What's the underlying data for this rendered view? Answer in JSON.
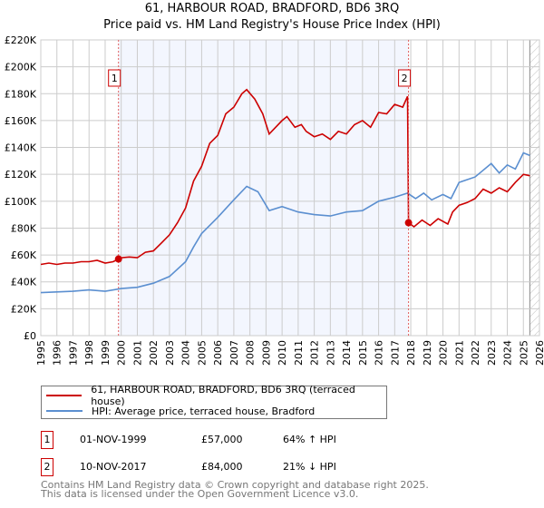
{
  "chart_data": {
    "type": "line",
    "title": "61, HARBOUR ROAD, BRADFORD, BD6 3RQ",
    "subtitle": "Price paid vs. HM Land Registry's House Price Index (HPI)",
    "xlim": [
      1995,
      2026
    ],
    "ylim": [
      0,
      220000
    ],
    "x_ticks": [
      "1995",
      "1996",
      "1997",
      "1998",
      "1999",
      "2000",
      "2001",
      "2002",
      "2003",
      "2004",
      "2005",
      "2006",
      "2007",
      "2008",
      "2009",
      "2010",
      "2011",
      "2012",
      "2013",
      "2014",
      "2015",
      "2016",
      "2017",
      "2018",
      "2019",
      "2020",
      "2021",
      "2022",
      "2023",
      "2024",
      "2025",
      "2026"
    ],
    "y_ticks": [
      "£0",
      "£20K",
      "£40K",
      "£60K",
      "£80K",
      "£100K",
      "£120K",
      "£140K",
      "£160K",
      "£180K",
      "£200K",
      "£220K"
    ],
    "grid": true,
    "series": [
      {
        "name": "61, HARBOUR ROAD, BRADFORD, BD6 3RQ (terraced house)",
        "color": "#cc0000",
        "x": [
          1995,
          1995.5,
          1996,
          1996.5,
          1997,
          1997.5,
          1998,
          1998.5,
          1999,
          1999.5,
          1999.83,
          2000,
          2000.5,
          2001,
          2001.5,
          2002,
          2002.5,
          2003,
          2003.5,
          2004,
          2004.5,
          2005,
          2005.5,
          2006,
          2006.5,
          2007,
          2007.5,
          2007.8,
          2008.3,
          2008.8,
          2009.2,
          2009.6,
          2010,
          2010.3,
          2010.8,
          2011.2,
          2011.5,
          2012,
          2012.5,
          2013,
          2013.5,
          2014,
          2014.5,
          2015,
          2015.5,
          2016,
          2016.5,
          2017,
          2017.5,
          2017.8,
          2017.86,
          2018.2,
          2018.7,
          2019.2,
          2019.7,
          2020.3,
          2020.6,
          2021,
          2021.5,
          2022,
          2022.5,
          2023,
          2023.5,
          2024,
          2024.5,
          2025,
          2025.4
        ],
        "y": [
          53000,
          54000,
          53000,
          54000,
          54000,
          55000,
          55000,
          56000,
          54000,
          55000,
          57000,
          58000,
          58500,
          58000,
          62000,
          63000,
          69000,
          75000,
          84000,
          95000,
          115000,
          126000,
          143000,
          149000,
          165000,
          170000,
          180000,
          183000,
          176000,
          165000,
          150000,
          155000,
          160000,
          163000,
          155000,
          157000,
          152000,
          148000,
          150000,
          146000,
          152000,
          150000,
          157000,
          160000,
          155000,
          166000,
          165000,
          172000,
          170000,
          178000,
          84000,
          81000,
          86000,
          82000,
          87000,
          83000,
          92000,
          97000,
          99000,
          102000,
          109000,
          106000,
          110000,
          107000,
          114000,
          120000,
          119000
        ]
      },
      {
        "name": "HPI: Average price, terraced house, Bradford",
        "color": "#5b8fd0",
        "x": [
          1995,
          1996,
          1997,
          1998,
          1999,
          2000,
          2001,
          2002,
          2003,
          2004,
          2004.5,
          2005,
          2006,
          2007,
          2007.8,
          2008.5,
          2009.2,
          2010,
          2011,
          2012,
          2013,
          2014,
          2015,
          2016,
          2017,
          2017.8,
          2018.3,
          2018.8,
          2019.3,
          2020,
          2020.5,
          2021,
          2022,
          2023,
          2023.5,
          2024,
          2024.5,
          2025,
          2025.4
        ],
        "y": [
          32000,
          32500,
          33000,
          34000,
          33000,
          35000,
          36000,
          39000,
          44000,
          55000,
          66000,
          76000,
          88000,
          101000,
          111000,
          107000,
          93000,
          96000,
          92000,
          90000,
          89000,
          92000,
          93000,
          100000,
          103000,
          106000,
          102000,
          106000,
          101000,
          105000,
          102000,
          114000,
          118000,
          128000,
          121000,
          127000,
          124000,
          136000,
          134000
        ]
      }
    ],
    "annotations": [
      {
        "label": "1",
        "x": 1999.83,
        "y": 57000
      },
      {
        "label": "2",
        "x": 2017.86,
        "y": 84000
      }
    ],
    "shaded_range": [
      1999.83,
      2017.86
    ],
    "hatched_from": 2025.4,
    "legend": "below"
  },
  "legend": {
    "items": [
      "61, HARBOUR ROAD, BRADFORD, BD6 3RQ (terraced house)",
      "HPI: Average price, terraced house, Bradford"
    ]
  },
  "transactions": [
    {
      "num": "1",
      "date": "01-NOV-1999",
      "price": "£57,000",
      "hpi": "64% ↑ HPI"
    },
    {
      "num": "2",
      "date": "10-NOV-2017",
      "price": "£84,000",
      "hpi": "21% ↓ HPI"
    }
  ],
  "footer": {
    "line1": "Contains HM Land Registry data © Crown copyright and database right 2025.",
    "line2": "This data is licensed under the Open Government Licence v3.0."
  }
}
